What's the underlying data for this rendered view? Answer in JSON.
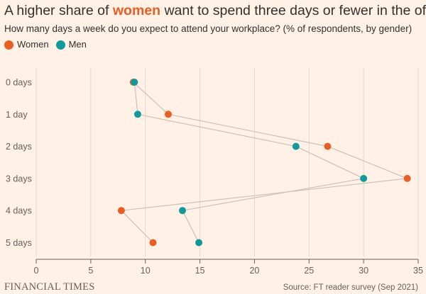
{
  "title_parts": {
    "before": "A higher share of ",
    "highlight": "women",
    "after": " want to spend three days or fewer in the office"
  },
  "subtitle": "How many days a week do you expect to attend your workplace? (% of respondents, by gender)",
  "colors": {
    "women": "#EB5E23",
    "men": "#0F9A9E",
    "grid": "#E3D8CE",
    "connector": "#CCC1B7",
    "axis": "#66605C"
  },
  "footer": {
    "logo": "FINANCIAL TIMES",
    "source": "Source: FT reader survey (Sep 2021)"
  },
  "chart_data": {
    "type": "scatter",
    "title": "A higher share of women want to spend three days or fewer in the office",
    "subtitle": "How many days a week do you expect to attend your workplace? (% of respondents, by gender)",
    "categories": [
      "0 days",
      "1 day",
      "2 days",
      "3 days",
      "4 days",
      "5 days"
    ],
    "series": [
      {
        "name": "Women",
        "values": [
          8.9,
          12.1,
          26.7,
          34.0,
          7.8,
          10.7
        ]
      },
      {
        "name": "Men",
        "values": [
          9.0,
          9.3,
          23.8,
          30.0,
          13.4,
          14.9
        ]
      }
    ],
    "xticks": [
      "0",
      "5",
      "10",
      "15",
      "20",
      "25",
      "30",
      "35"
    ],
    "xlim": [
      0,
      35
    ],
    "xlabel": "",
    "ylabel": "",
    "grid": true,
    "legend": "top-left"
  }
}
